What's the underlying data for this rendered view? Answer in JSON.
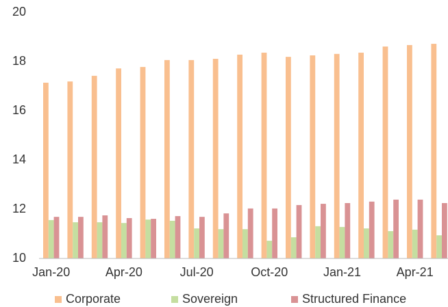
{
  "chart_data": {
    "type": "bar",
    "categories": [
      "Jan-20",
      null,
      null,
      "Apr-20",
      null,
      null,
      "Jul-20",
      null,
      null,
      "Oct-20",
      null,
      null,
      "Jan-21",
      null,
      null,
      "Apr-21",
      null
    ],
    "series": [
      {
        "name": "Corporate",
        "color": "#f9bf8f",
        "values": [
          17.14,
          17.19,
          17.42,
          17.72,
          17.78,
          18.06,
          18.06,
          18.11,
          18.28,
          18.36,
          18.19,
          18.25,
          18.31,
          18.36,
          18.61,
          18.67,
          18.72
        ]
      },
      {
        "name": "Sovereign",
        "color": "#c5dea0",
        "values": [
          11.56,
          11.47,
          11.47,
          11.44,
          11.58,
          11.53,
          11.22,
          11.19,
          11.19,
          10.72,
          10.86,
          11.31,
          11.28,
          11.22,
          11.11,
          11.17,
          10.94
        ]
      },
      {
        "name": "Structured Finance",
        "color": "#d99294",
        "values": [
          11.69,
          11.69,
          11.75,
          11.64,
          11.61,
          11.72,
          11.69,
          11.83,
          12.03,
          12.03,
          12.17,
          12.22,
          12.25,
          12.31,
          12.39,
          12.39,
          12.25
        ]
      }
    ],
    "ylim": [
      10,
      20
    ],
    "yticks": [
      10,
      12,
      14,
      16,
      18,
      20
    ],
    "grid": false,
    "legend": "bottom"
  }
}
